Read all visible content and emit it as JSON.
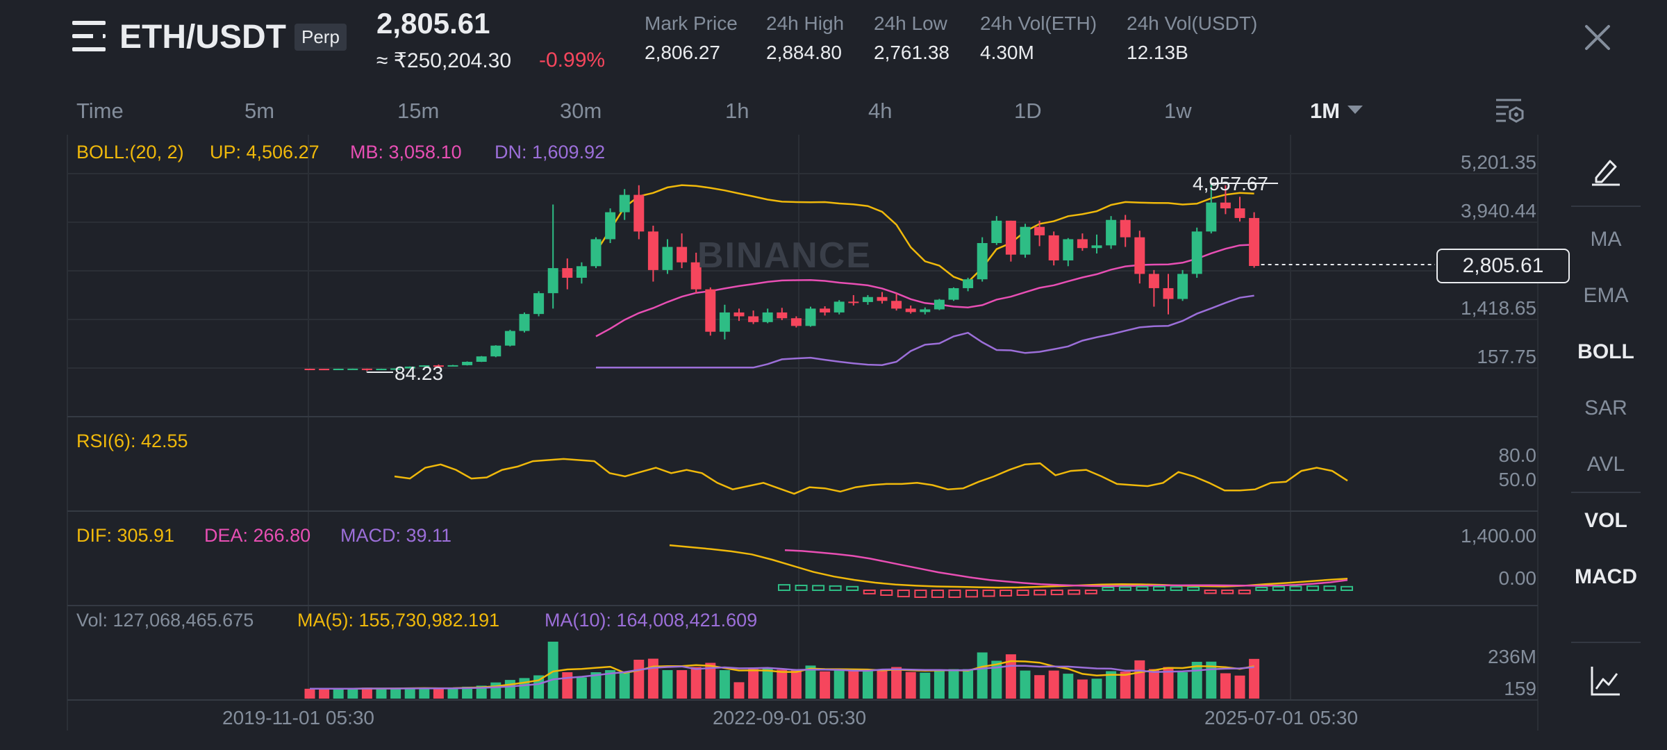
{
  "header": {
    "pair": "ETH/USDT",
    "contract_type": "Perp",
    "last_price": "2,805.61",
    "fiat_price": "≈ ₹250,204.30",
    "change_pct": "-0.99%",
    "stats": [
      {
        "label": "Mark Price",
        "value": "2,806.27"
      },
      {
        "label": "24h High",
        "value": "2,884.80"
      },
      {
        "label": "24h Low",
        "value": "2,761.38"
      },
      {
        "label": "24h Vol(ETH)",
        "value": "4.30M"
      },
      {
        "label": "24h Vol(USDT)",
        "value": "12.13B"
      }
    ]
  },
  "timeframes": [
    "Time",
    "5m",
    "15m",
    "30m",
    "1h",
    "4h",
    "1D",
    "1w",
    "1M"
  ],
  "active_timeframe": "1M",
  "indicators": {
    "boll": {
      "name": "BOLL:(20, 2)",
      "up": "UP: 4,506.27",
      "mb": "MB: 3,058.10",
      "dn": "DN: 1,609.92"
    },
    "rsi": {
      "label": "RSI(6): 42.55"
    },
    "macd": {
      "dif": "DIF: 305.91",
      "dea": "DEA: 266.80",
      "macd": "MACD: 39.11"
    },
    "vol": {
      "vol": "Vol: 127,068,465.675",
      "ma5": "MA(5): 155,730,982.191",
      "ma10": "MA(10): 164,008,421.609"
    }
  },
  "price_axis": [
    "5,201.35",
    "3,940.44",
    "2,805.61",
    "1,418.65",
    "157.75"
  ],
  "rsi_axis": [
    "80.0",
    "50.0"
  ],
  "macd_axis": [
    "1,400.00",
    "0.00"
  ],
  "vol_axis": [
    "236M",
    "159"
  ],
  "dates": [
    "2019-11-01 05:30",
    "2022-09-01 05:30",
    "2025-07-01 05:30"
  ],
  "annotations": {
    "high": "4,957.67",
    "low": "84.23"
  },
  "watermark": "BINANCE",
  "side_menu": [
    "MA",
    "EMA",
    "BOLL",
    "SAR",
    "AVL",
    "VOL",
    "MACD"
  ],
  "side_active": [
    "BOLL",
    "VOL",
    "MACD"
  ],
  "colors": {
    "up": "#2ebd85",
    "down": "#f6465d",
    "boll_up": "#f0b90b",
    "boll_mb": "#e84fb4",
    "boll_dn": "#9c6fd9",
    "bg": "#1f2229"
  },
  "chart_data": {
    "type": "candlestick",
    "interval": "1M",
    "price_range": [
      157.75,
      5201.35
    ],
    "candles": [
      [
        140,
        142,
        136,
        138
      ],
      [
        138,
        140,
        134,
        136
      ],
      [
        136,
        141,
        135,
        140
      ],
      [
        140,
        143,
        138,
        142
      ],
      [
        142,
        144,
        84.23,
        136
      ],
      [
        136,
        142,
        130,
        139
      ],
      [
        139,
        150,
        135,
        148
      ],
      [
        148,
        200,
        146,
        195
      ],
      [
        195,
        230,
        190,
        228
      ],
      [
        228,
        250,
        220,
        225
      ],
      [
        225,
        240,
        210,
        232
      ],
      [
        232,
        330,
        225,
        320
      ],
      [
        320,
        470,
        315,
        460
      ],
      [
        460,
        750,
        440,
        740
      ],
      [
        740,
        1150,
        720,
        1120
      ],
      [
        1120,
        1600,
        1080,
        1560
      ],
      [
        1560,
        2150,
        1500,
        2100
      ],
      [
        2100,
        4400,
        1700,
        2750
      ],
      [
        2750,
        3000,
        2200,
        2500
      ],
      [
        2500,
        2900,
        2350,
        2800
      ],
      [
        2800,
        3550,
        2750,
        3500
      ],
      [
        3500,
        4300,
        3400,
        4200
      ],
      [
        4200,
        4800,
        4000,
        4650
      ],
      [
        4650,
        4900,
        3500,
        3700
      ],
      [
        3700,
        3850,
        2400,
        2700
      ],
      [
        2700,
        3500,
        2600,
        3300
      ],
      [
        3300,
        3650,
        2750,
        2900
      ],
      [
        2900,
        3150,
        2100,
        2200
      ],
      [
        2200,
        2250,
        1000,
        1100
      ],
      [
        1100,
        1800,
        900,
        1600
      ],
      [
        1600,
        1700,
        1380,
        1500
      ],
      [
        1500,
        1650,
        1300,
        1350
      ],
      [
        1350,
        1700,
        1320,
        1600
      ],
      [
        1600,
        1720,
        1400,
        1450
      ],
      [
        1450,
        1500,
        1210,
        1250
      ],
      [
        1250,
        1750,
        1230,
        1700
      ],
      [
        1700,
        1760,
        1520,
        1600
      ],
      [
        1600,
        1920,
        1550,
        1880
      ],
      [
        1880,
        2050,
        1780,
        1870
      ],
      [
        1870,
        2050,
        1800,
        2000
      ],
      [
        2000,
        2130,
        1830,
        1900
      ],
      [
        1900,
        2100,
        1650,
        1700
      ],
      [
        1700,
        1780,
        1570,
        1610
      ],
      [
        1610,
        1730,
        1550,
        1680
      ],
      [
        1680,
        1950,
        1660,
        1930
      ],
      [
        1930,
        2250,
        1900,
        2230
      ],
      [
        2230,
        2500,
        2150,
        2460
      ],
      [
        2460,
        3550,
        2400,
        3400
      ],
      [
        3400,
        4100,
        3350,
        3980
      ],
      [
        3980,
        3980,
        2920,
        3100
      ],
      [
        3100,
        3900,
        3020,
        3820
      ],
      [
        3820,
        3980,
        3320,
        3600
      ],
      [
        3600,
        3700,
        2820,
        2950
      ],
      [
        2950,
        3530,
        2800,
        3500
      ],
      [
        3500,
        3650,
        3200,
        3270
      ],
      [
        3270,
        3620,
        3130,
        3340
      ],
      [
        3340,
        4100,
        3250,
        4000
      ],
      [
        4000,
        4130,
        3300,
        3550
      ],
      [
        3550,
        3720,
        2350,
        2600
      ],
      [
        2600,
        2700,
        1750,
        2230
      ],
      [
        2230,
        2600,
        1550,
        1950
      ],
      [
        1950,
        2700,
        1900,
        2600
      ],
      [
        2600,
        3800,
        2500,
        3700
      ],
      [
        3700,
        4957.67,
        3650,
        4450
      ],
      [
        4450,
        4900,
        4150,
        4300
      ],
      [
        4300,
        4600,
        3960,
        4050
      ],
      [
        4050,
        4200,
        2760,
        2805.61
      ]
    ],
    "boll": {
      "up": "4,506.27",
      "mb": "3,058.10",
      "dn": "1,609.92"
    },
    "rsi6": [
      52,
      50,
      60,
      63,
      58,
      50,
      51,
      58,
      61,
      66,
      67,
      68,
      67,
      66,
      55,
      52,
      56,
      60,
      55,
      58,
      55,
      46,
      40,
      43,
      46,
      41,
      36,
      42,
      41,
      38,
      42,
      44,
      45,
      45,
      46,
      44,
      40,
      41,
      47,
      52,
      58,
      63,
      64,
      53,
      57,
      58,
      52,
      45,
      44,
      43,
      46,
      56,
      52,
      46,
      39,
      39,
      40,
      46,
      47,
      57,
      60,
      57,
      48
    ],
    "macd_dif": [
      1180,
      1130,
      1080,
      1020,
      940,
      800,
      640,
      480,
      360,
      270,
      200,
      150,
      120,
      100,
      90,
      80,
      70,
      75,
      90,
      110,
      130,
      150,
      160,
      155,
      140,
      120,
      110,
      100,
      120,
      160,
      190,
      230,
      270,
      305.91
    ],
    "macd_dea": [
      1050,
      1030,
      990,
      950,
      900,
      830,
      740,
      650,
      560,
      470,
      400,
      330,
      270,
      230,
      190,
      160,
      140,
      125,
      115,
      110,
      112,
      118,
      125,
      130,
      132,
      131,
      128,
      123,
      120,
      125,
      140,
      170,
      210,
      266.8
    ],
    "volume_ma": {
      "ma5": "155,730,982.191",
      "ma10": "164,008,421.609"
    },
    "volume_axis": [
      "236M",
      "159"
    ],
    "x_ticks": [
      "2019-11-01 05:30",
      "2022-09-01 05:30",
      "2025-07-01 05:30"
    ]
  }
}
